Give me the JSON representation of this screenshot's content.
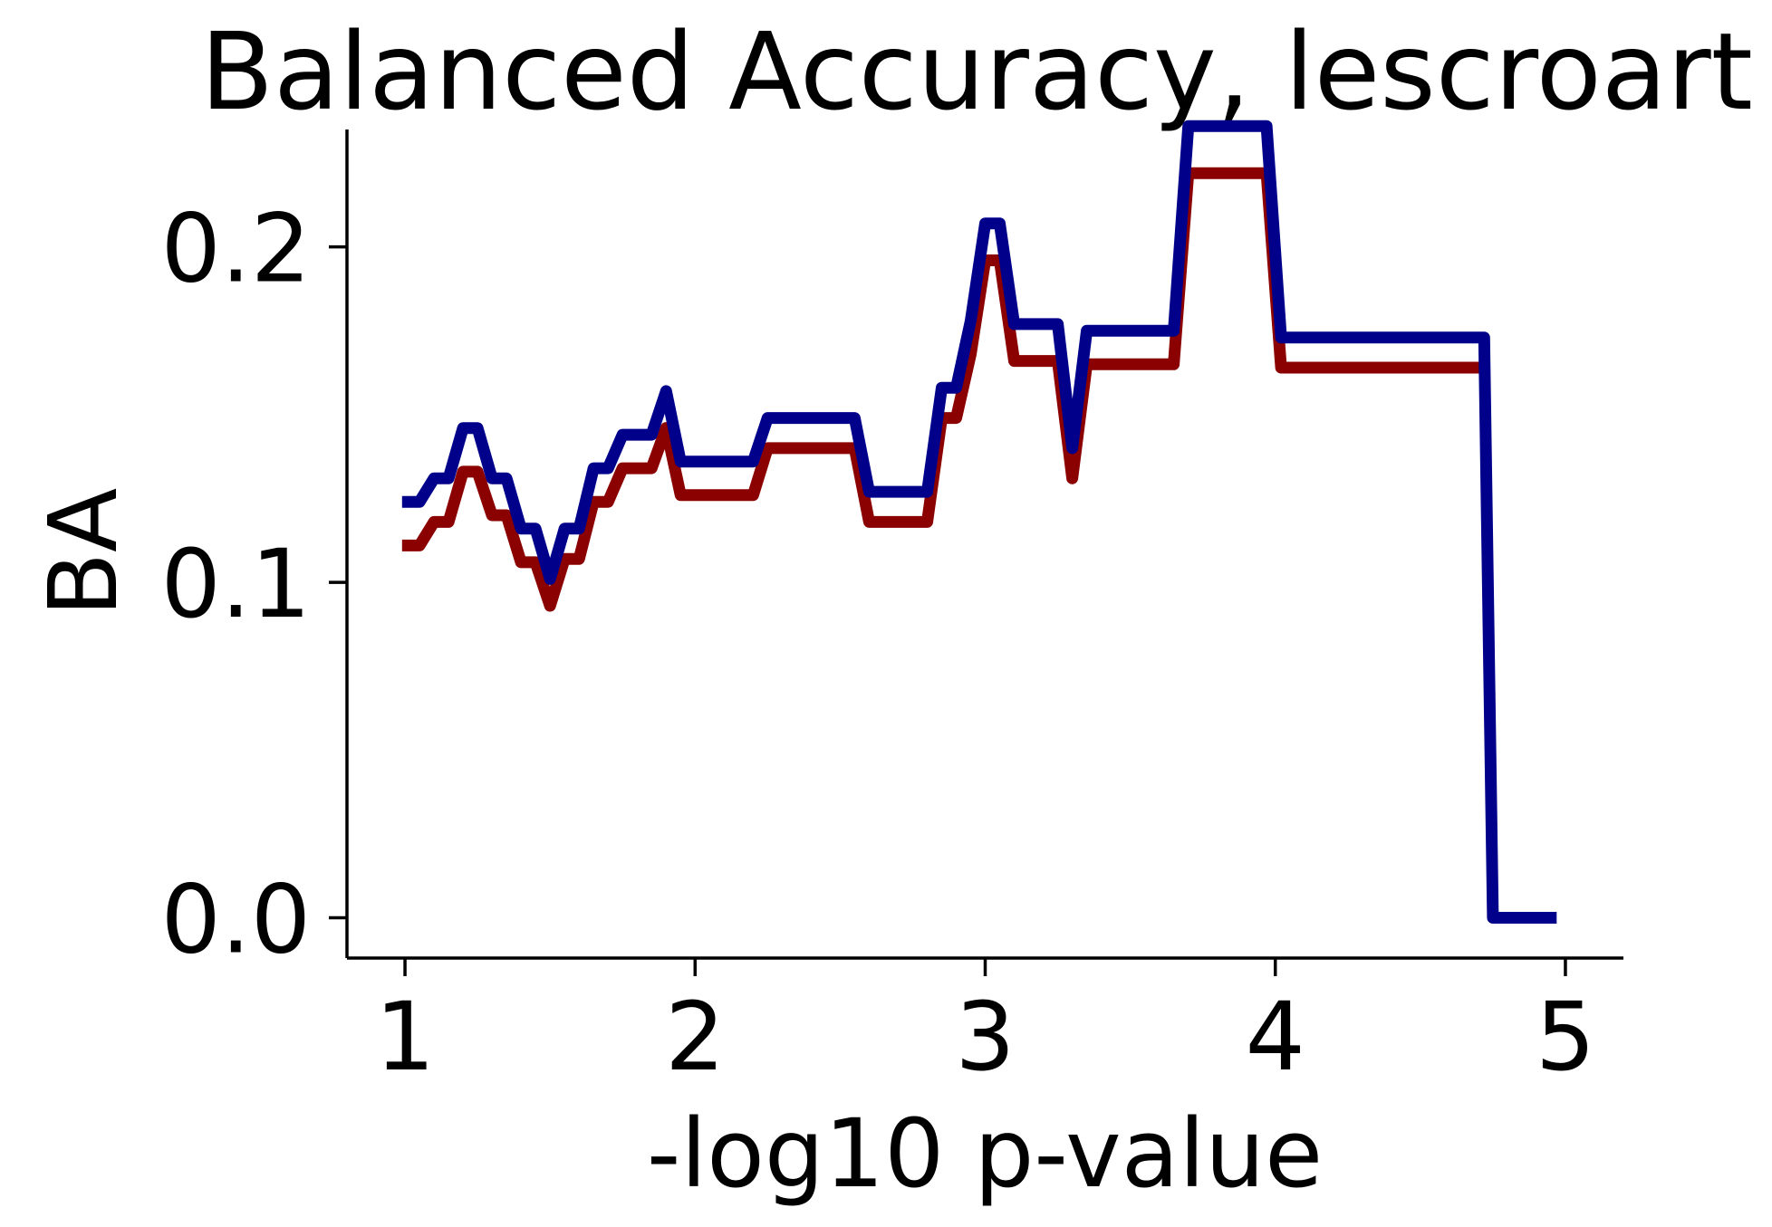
{
  "chart_data": {
    "type": "line",
    "title": "Balanced Accuracy, lescroart",
    "xlabel": "-log10 p-value",
    "ylabel": "BA",
    "xlim": [
      0.8,
      5.2
    ],
    "ylim": [
      -0.012,
      0.235
    ],
    "xticks": [
      1,
      2,
      3,
      4,
      5
    ],
    "xtick_labels": [
      "1",
      "2",
      "3",
      "4",
      "5"
    ],
    "yticks": [
      0.0,
      0.1,
      0.2
    ],
    "ytick_labels": [
      "0.0",
      "0.1",
      "0.2"
    ],
    "grid": false,
    "legend": "none",
    "series": [
      {
        "color": "#8b0000",
        "points": [
          [
            0.99,
            0.111
          ],
          [
            1.05,
            0.111
          ],
          [
            1.1,
            0.118
          ],
          [
            1.15,
            0.118
          ],
          [
            1.2,
            0.133
          ],
          [
            1.25,
            0.133
          ],
          [
            1.3,
            0.12
          ],
          [
            1.35,
            0.12
          ],
          [
            1.4,
            0.106
          ],
          [
            1.45,
            0.106
          ],
          [
            1.5,
            0.093
          ],
          [
            1.55,
            0.107
          ],
          [
            1.6,
            0.107
          ],
          [
            1.65,
            0.124
          ],
          [
            1.7,
            0.124
          ],
          [
            1.75,
            0.134
          ],
          [
            1.85,
            0.134
          ],
          [
            1.9,
            0.146
          ],
          [
            1.95,
            0.126
          ],
          [
            2.2,
            0.126
          ],
          [
            2.25,
            0.14
          ],
          [
            2.55,
            0.14
          ],
          [
            2.6,
            0.118
          ],
          [
            2.8,
            0.118
          ],
          [
            2.85,
            0.149
          ],
          [
            2.9,
            0.149
          ],
          [
            2.95,
            0.168
          ],
          [
            3.0,
            0.196
          ],
          [
            3.05,
            0.196
          ],
          [
            3.1,
            0.166
          ],
          [
            3.25,
            0.166
          ],
          [
            3.3,
            0.131
          ],
          [
            3.35,
            0.165
          ],
          [
            3.65,
            0.165
          ],
          [
            3.7,
            0.222
          ],
          [
            3.97,
            0.222
          ],
          [
            4.02,
            0.164
          ],
          [
            4.72,
            0.164
          ]
        ]
      },
      {
        "color": "#00008b",
        "points": [
          [
            0.99,
            0.124
          ],
          [
            1.05,
            0.124
          ],
          [
            1.1,
            0.131
          ],
          [
            1.15,
            0.131
          ],
          [
            1.2,
            0.146
          ],
          [
            1.25,
            0.146
          ],
          [
            1.3,
            0.131
          ],
          [
            1.35,
            0.131
          ],
          [
            1.4,
            0.116
          ],
          [
            1.45,
            0.116
          ],
          [
            1.5,
            0.101
          ],
          [
            1.55,
            0.116
          ],
          [
            1.6,
            0.116
          ],
          [
            1.65,
            0.134
          ],
          [
            1.7,
            0.134
          ],
          [
            1.75,
            0.144
          ],
          [
            1.85,
            0.144
          ],
          [
            1.9,
            0.157
          ],
          [
            1.95,
            0.136
          ],
          [
            2.2,
            0.136
          ],
          [
            2.25,
            0.149
          ],
          [
            2.55,
            0.149
          ],
          [
            2.6,
            0.127
          ],
          [
            2.8,
            0.127
          ],
          [
            2.85,
            0.158
          ],
          [
            2.9,
            0.158
          ],
          [
            2.95,
            0.178
          ],
          [
            3.0,
            0.207
          ],
          [
            3.05,
            0.207
          ],
          [
            3.1,
            0.177
          ],
          [
            3.25,
            0.177
          ],
          [
            3.3,
            0.14
          ],
          [
            3.35,
            0.175
          ],
          [
            3.65,
            0.175
          ],
          [
            3.7,
            0.236
          ],
          [
            3.97,
            0.236
          ],
          [
            4.02,
            0.173
          ],
          [
            4.72,
            0.173
          ],
          [
            4.75,
            0.0
          ],
          [
            4.97,
            0.0
          ]
        ]
      }
    ]
  }
}
